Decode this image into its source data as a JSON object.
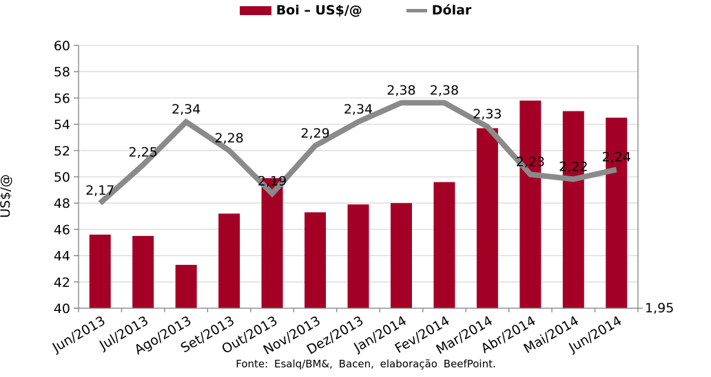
{
  "legend": {
    "items": [
      {
        "label": "Boi – US$/@",
        "marker": "bar-swatch"
      },
      {
        "label": "Dólar",
        "marker": "line-swatch"
      }
    ]
  },
  "chart_data": {
    "type": "combo",
    "categories": [
      "Jun/2013",
      "Jul/2013",
      "Ago/2013",
      "Set/2013",
      "Out/2013",
      "Nov/2013",
      "Dez/2013",
      "Jan/2014",
      "Fev/2014",
      "Mar/2014",
      "Abr/2014",
      "Mai/2014",
      "Jun/2014"
    ],
    "series": [
      {
        "name": "Boi – US$/@",
        "type": "bar",
        "y_axis": "left",
        "color": "#A40026",
        "values": [
          45.6,
          45.5,
          43.3,
          47.2,
          49.9,
          47.3,
          47.9,
          48.0,
          49.6,
          53.7,
          55.8,
          55.0,
          54.5
        ]
      },
      {
        "name": "Dólar",
        "type": "line",
        "y_axis": "right",
        "color": "#8A8A8A",
        "values": [
          2.17,
          2.25,
          2.34,
          2.28,
          2.19,
          2.29,
          2.34,
          2.38,
          2.38,
          2.33,
          2.23,
          2.22,
          2.24
        ],
        "point_labels": [
          "2,17",
          "2,25",
          "2,34",
          "2,28",
          "2,19",
          "2,29",
          "2,34",
          "2,38",
          "2,38",
          "2,33",
          "2,23",
          "2,22",
          "2,24"
        ]
      }
    ],
    "title": "",
    "xlabel": "",
    "ylabel": "US$/@",
    "axes": {
      "left": {
        "min": 40,
        "max": 60,
        "step": 2,
        "tick_labels": [
          "60",
          "58",
          "56",
          "54",
          "52",
          "50",
          "48",
          "46",
          "44",
          "42",
          "40"
        ]
      },
      "right": {
        "min": 1.95,
        "max": 2.5,
        "visible_tick_label": "1,95"
      }
    },
    "grid": true,
    "legend_position": "top"
  },
  "colors": {
    "bar": "#A40026",
    "line": "#8A8A8A",
    "grid": "#D9D9D9",
    "axis": "#7F7F7F",
    "text": "#000000",
    "background": "#FFFFFF"
  },
  "footer": {
    "text": "Fonte: Esalq/BM&, Bacen, elaboração BeefPoint."
  }
}
